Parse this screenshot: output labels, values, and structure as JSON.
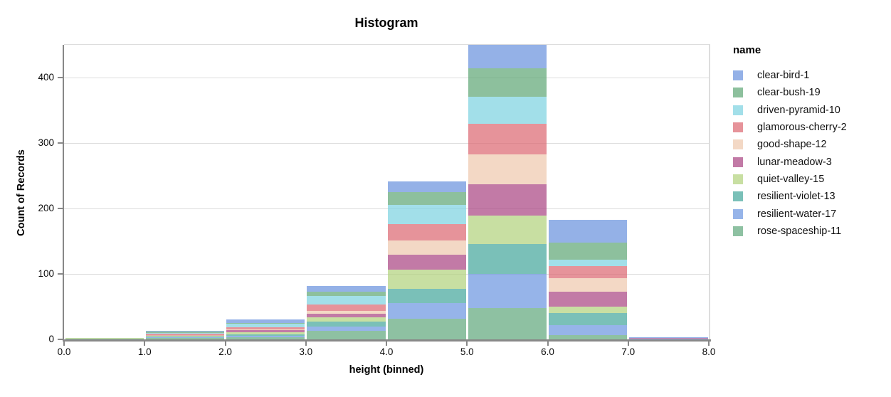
{
  "chart_data": {
    "type": "bar",
    "subtype": "stacked-histogram",
    "title": "Histogram",
    "xlabel": "height (binned)",
    "ylabel": "Count of Records",
    "legend_title": "name",
    "legend_position": "right",
    "grid": true,
    "xlim": [
      0,
      8
    ],
    "ylim": [
      0,
      450
    ],
    "bin_edges": [
      0,
      1,
      2,
      3,
      4,
      5,
      6,
      7,
      8
    ],
    "x_tick_labels": [
      "0.0",
      "1.0",
      "2.0",
      "3.0",
      "4.0",
      "5.0",
      "6.0",
      "7.0",
      "8.0"
    ],
    "x_tick_values": [
      0,
      1,
      2,
      3,
      4,
      5,
      6,
      7,
      8
    ],
    "y_tick_values": [
      0,
      100,
      200,
      300,
      400
    ],
    "grid_values": [
      100,
      200,
      300,
      400
    ],
    "bar_opacity": 0.7,
    "stack_order": "bottom-to-top is reverse of legend order (rose-spaceship-11 at bottom, clear-bird-1 on top)",
    "series": [
      {
        "name": "clear-bird-1",
        "color": "#6690dd",
        "values": [
          0,
          1,
          5,
          8,
          16,
          36,
          35,
          1
        ]
      },
      {
        "name": "clear-bush-19",
        "color": "#5ca574",
        "values": [
          0,
          2,
          1,
          7,
          20,
          43,
          26,
          0
        ]
      },
      {
        "name": "driven-pyramid-10",
        "color": "#7bd1e0",
        "values": [
          0,
          1,
          5,
          13,
          29,
          42,
          10,
          0
        ]
      },
      {
        "name": "glamorous-cherry-2",
        "color": "#db656f",
        "values": [
          0,
          2,
          4,
          10,
          25,
          46,
          18,
          0
        ]
      },
      {
        "name": "good-shape-12",
        "color": "#eec7ac",
        "values": [
          0,
          1,
          1,
          4,
          22,
          46,
          21,
          0
        ]
      },
      {
        "name": "lunar-meadow-3",
        "color": "#a84280",
        "values": [
          0,
          1,
          3,
          5,
          22,
          48,
          23,
          1
        ]
      },
      {
        "name": "quiet-valley-15",
        "color": "#b0d17a",
        "values": [
          1,
          1,
          3,
          7,
          30,
          43,
          10,
          0
        ]
      },
      {
        "name": "resilient-violet-13",
        "color": "#41a59a",
        "values": [
          0,
          1,
          3,
          7,
          22,
          46,
          18,
          0
        ]
      },
      {
        "name": "resilient-water-17",
        "color": "#6a94e0",
        "values": [
          0,
          1,
          2,
          7,
          24,
          52,
          16,
          1
        ]
      },
      {
        "name": "rose-spaceship-11",
        "color": "#5ea67a",
        "values": [
          1,
          2,
          3,
          13,
          31,
          48,
          6,
          0
        ]
      }
    ],
    "bin_totals": [
      2,
      13,
      30,
      81,
      241,
      450,
      183,
      3
    ],
    "colors": {
      "axis_domain": "#888888",
      "tick": "#888888",
      "grid": "#dddddd",
      "text": "#000000",
      "background": "#ffffff"
    }
  }
}
